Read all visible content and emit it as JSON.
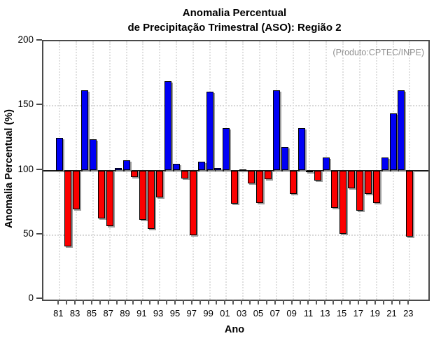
{
  "title": {
    "line1": "Anomalia Percentual",
    "line2": "de Precipitação Trimestral (ASO): Região 2"
  },
  "annotation": "(Produto:CPTEC/INPE)",
  "axes": {
    "y_label": "Anomalia Percentual (%)",
    "x_label": "Ano",
    "y_ticks": [
      0,
      50,
      100,
      150,
      200
    ],
    "x_tick_labels": [
      "81",
      "83",
      "85",
      "87",
      "89",
      "91",
      "93",
      "95",
      "97",
      "99",
      "01",
      "03",
      "05",
      "07",
      "09",
      "11",
      "13",
      "15",
      "17",
      "19",
      "21",
      "23"
    ]
  },
  "colors": {
    "above_baseline": "#0000f5",
    "below_baseline": "#fb0000",
    "outline": "#000000",
    "annotation_text": "#8f8f8f"
  },
  "chart_data": {
    "type": "bar",
    "title": "Anomalia Percentual de Precipitação Trimestral (ASO): Região 2",
    "xlabel": "Ano",
    "ylabel": "Anomalia Percentual (%)",
    "ylim": [
      0,
      200
    ],
    "baseline": 100,
    "grid": "dotted, horizontal at 50/100/150 and vertical at labeled odd years",
    "legend": "none",
    "categories": [
      "81",
      "82",
      "83",
      "84",
      "85",
      "86",
      "87",
      "88",
      "89",
      "90",
      "91",
      "92",
      "93",
      "94",
      "95",
      "96",
      "97",
      "98",
      "99",
      "00",
      "01",
      "02",
      "03",
      "04",
      "05",
      "06",
      "07",
      "08",
      "09",
      "10",
      "11",
      "12",
      "13",
      "14",
      "15",
      "16",
      "17",
      "18",
      "19",
      "20",
      "21",
      "22",
      "23"
    ],
    "values": [
      125,
      41,
      70,
      162,
      124,
      63,
      57,
      102,
      108,
      95,
      62,
      55,
      79,
      169,
      105,
      94,
      50,
      107,
      161,
      102,
      133,
      74,
      100,
      90,
      75,
      93,
      162,
      118,
      82,
      133,
      99,
      92,
      110,
      71,
      51,
      86,
      69,
      82,
      75,
      110,
      144,
      162,
      49
    ]
  }
}
